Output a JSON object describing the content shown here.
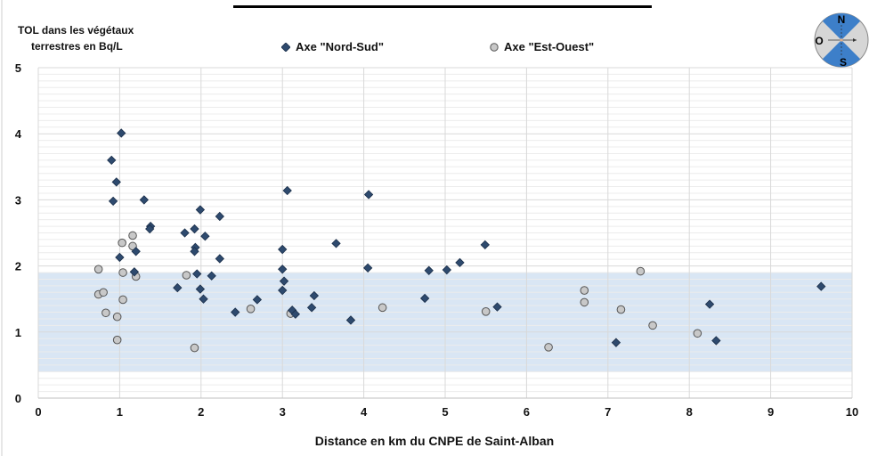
{
  "title": "",
  "compass": {
    "north": "N",
    "south": "S",
    "west": "O",
    "icon": "compass-icon"
  },
  "colors": {
    "series_ns": "#2e4a6e",
    "series_eo": "#c8c8c8",
    "band": "#d9e6f4",
    "compass_blue": "#3d7fc9",
    "compass_grey": "#d6d6d6",
    "grid": "#d9d9d9"
  },
  "chart_data": {
    "type": "scatter",
    "title": "",
    "ylabel_lines": [
      "TOL dans les végétaux",
      "terrestres en Bq/L"
    ],
    "xlabel": "Distance en km du CNPE de Saint-Alban",
    "xlim": [
      0,
      10
    ],
    "ylim": [
      0,
      5
    ],
    "x_ticks": [
      0,
      1,
      2,
      3,
      4,
      5,
      6,
      7,
      8,
      9,
      10
    ],
    "y_ticks": [
      0,
      1,
      2,
      3,
      4,
      5
    ],
    "grid": true,
    "legend_position": "top",
    "band": {
      "y_from": 0.4,
      "y_to": 1.9
    },
    "series": [
      {
        "name": "Axe \"Nord-Sud\"",
        "marker": "diamond",
        "points": [
          [
            1.02,
            4.01
          ],
          [
            0.9,
            3.6
          ],
          [
            0.96,
            3.27
          ],
          [
            0.92,
            2.98
          ],
          [
            1.3,
            3.0
          ],
          [
            1.38,
            2.6
          ],
          [
            1.37,
            2.56
          ],
          [
            1.0,
            2.13
          ],
          [
            1.2,
            2.22
          ],
          [
            1.18,
            1.91
          ],
          [
            1.71,
            1.67
          ],
          [
            1.8,
            2.5
          ],
          [
            1.92,
            2.56
          ],
          [
            1.99,
            2.85
          ],
          [
            2.05,
            2.45
          ],
          [
            1.93,
            2.28
          ],
          [
            1.92,
            2.22
          ],
          [
            1.95,
            1.88
          ],
          [
            1.99,
            1.65
          ],
          [
            2.03,
            1.5
          ],
          [
            2.13,
            1.85
          ],
          [
            2.23,
            2.75
          ],
          [
            2.23,
            2.11
          ],
          [
            2.42,
            1.3
          ],
          [
            2.69,
            1.49
          ],
          [
            3.06,
            3.14
          ],
          [
            3.0,
            2.25
          ],
          [
            3.0,
            1.95
          ],
          [
            3.02,
            1.77
          ],
          [
            3.0,
            1.63
          ],
          [
            3.12,
            1.33
          ],
          [
            3.16,
            1.27
          ],
          [
            3.36,
            1.37
          ],
          [
            3.39,
            1.55
          ],
          [
            3.66,
            2.34
          ],
          [
            3.84,
            1.18
          ],
          [
            4.06,
            3.08
          ],
          [
            4.05,
            1.97
          ],
          [
            4.75,
            1.51
          ],
          [
            4.8,
            1.93
          ],
          [
            5.02,
            1.94
          ],
          [
            5.18,
            2.05
          ],
          [
            5.49,
            2.32
          ],
          [
            5.64,
            1.38
          ],
          [
            7.1,
            0.84
          ],
          [
            8.25,
            1.42
          ],
          [
            8.33,
            0.87
          ],
          [
            9.62,
            1.69
          ]
        ]
      },
      {
        "name": "Axe \"Est-Ouest\"",
        "marker": "circle",
        "points": [
          [
            0.74,
            1.95
          ],
          [
            0.74,
            1.57
          ],
          [
            0.8,
            1.6
          ],
          [
            0.83,
            1.29
          ],
          [
            0.97,
            1.23
          ],
          [
            0.97,
            0.88
          ],
          [
            1.03,
            2.35
          ],
          [
            1.04,
            1.9
          ],
          [
            1.04,
            1.49
          ],
          [
            1.16,
            2.46
          ],
          [
            1.16,
            2.3
          ],
          [
            1.2,
            1.84
          ],
          [
            1.82,
            1.86
          ],
          [
            1.92,
            0.76
          ],
          [
            2.61,
            1.35
          ],
          [
            3.1,
            1.28
          ],
          [
            4.23,
            1.37
          ],
          [
            5.5,
            1.31
          ],
          [
            6.27,
            0.77
          ],
          [
            6.71,
            1.63
          ],
          [
            6.71,
            1.45
          ],
          [
            7.16,
            1.34
          ],
          [
            7.4,
            1.92
          ],
          [
            7.55,
            1.1
          ],
          [
            8.1,
            0.98
          ]
        ]
      }
    ]
  }
}
